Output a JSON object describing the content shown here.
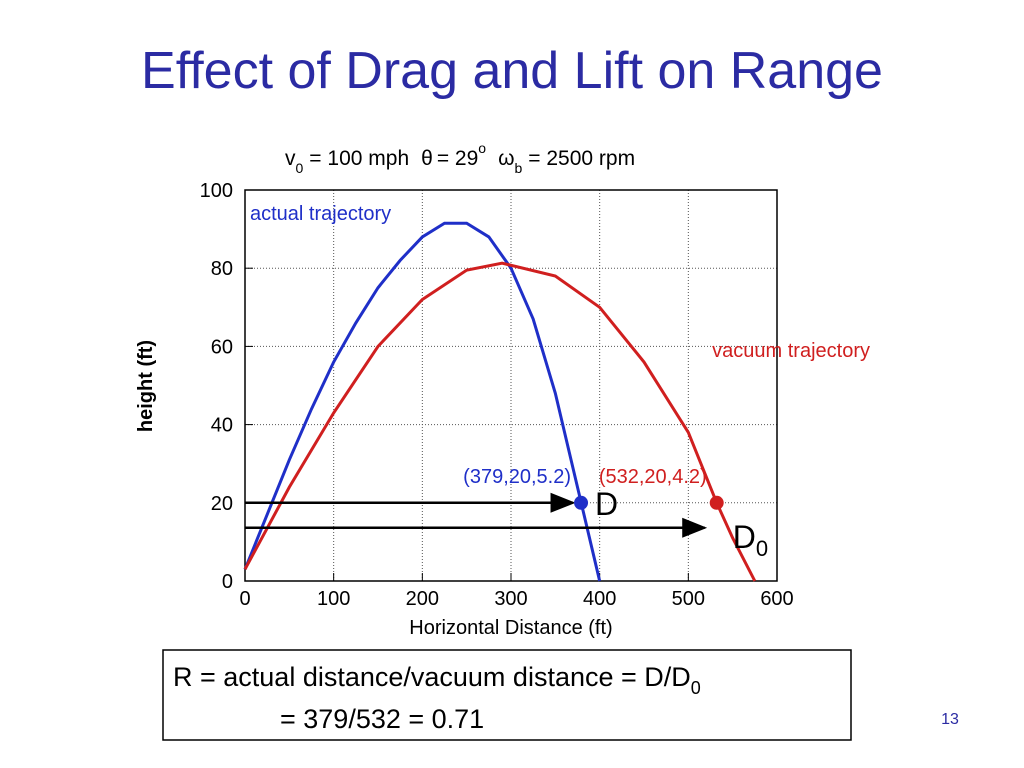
{
  "slide_title": "Effect of Drag and Lift on Range",
  "chart_data": {
    "type": "line",
    "subtitle": {
      "v": "v",
      "v_sub": "0",
      "v_text": "= 100 mph",
      "theta": "θ",
      "theta_text": "= 29",
      "theta_sup": "o",
      "omega": "ω",
      "omega_sub": "b",
      "omega_text": "= 2500 rpm"
    },
    "x_label": "Horizontal Distance (ft)",
    "y_label": "height (ft)",
    "xlim": [
      0,
      600
    ],
    "ylim": [
      0,
      100
    ],
    "xticks": [
      0,
      100,
      200,
      300,
      400,
      500,
      600
    ],
    "yticks": [
      0,
      20,
      40,
      60,
      80,
      100
    ],
    "grid": true,
    "series": [
      {
        "name": "actual trajectory",
        "color": "#1f2fc8",
        "x": [
          0,
          25,
          50,
          75,
          100,
          125,
          150,
          175,
          200,
          225,
          250,
          275,
          300,
          325,
          350,
          375,
          400
        ],
        "values": [
          3,
          17,
          31,
          44,
          56,
          66,
          75,
          82,
          88,
          91.5,
          91.5,
          88,
          80,
          67,
          48,
          24,
          0
        ]
      },
      {
        "name": "vacuum trajectory",
        "color": "#d01f1f",
        "x": [
          0,
          50,
          100,
          150,
          200,
          250,
          290,
          350,
          400,
          450,
          500,
          532,
          550,
          575
        ],
        "values": [
          3,
          24,
          43,
          60,
          72,
          79.5,
          81.3,
          78,
          70,
          56,
          38,
          20,
          11,
          0
        ]
      }
    ],
    "points": [
      {
        "label": "(379,20,5.2)",
        "x": 379,
        "y": 20,
        "color": "#1f2fc8",
        "name": "D"
      },
      {
        "label": "(532,20,4.2)",
        "x": 532,
        "y": 20,
        "color": "#d01f1f",
        "name": "D",
        "name_sub": "0"
      }
    ]
  },
  "formula": {
    "line1": "R = actual distance/vacuum distance = D/D",
    "line1_sub": "0",
    "line2": "= 379/532 = 0.71"
  },
  "page_number": "13"
}
